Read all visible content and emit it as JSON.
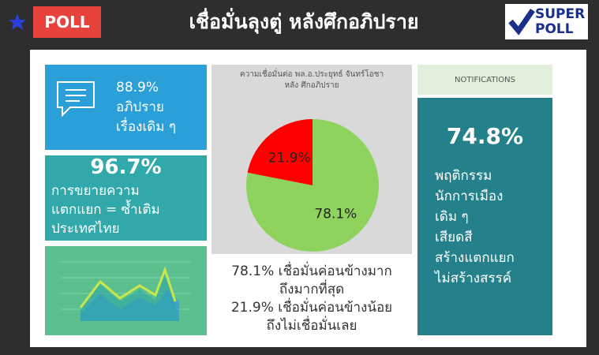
{
  "header": {
    "badge": "POLL",
    "title": "เชื่อมั่นลุงตู่ หลังศึกอภิปราย",
    "logo": [
      "SUPER",
      "POLL"
    ]
  },
  "cards": [
    {
      "value": "88.9%",
      "lines": [
        "อภิปราย",
        "เรื่องเดิม ๆ"
      ]
    },
    {
      "value": "96.7%",
      "lines": [
        "การขยายความ",
        "แตกแยก = ซ้ำเติม",
        "ประเทศไทย"
      ]
    }
  ],
  "chart_data": {
    "type": "pie",
    "title": [
      "ความเชื่อมั่นต่อ พล.อ.ประยุทธ์ จันทร์โอชา",
      "หลัง ศึกอภิปราย"
    ],
    "values": [
      78.1,
      21.9
    ],
    "value_labels": [
      "78.1%",
      "21.9%"
    ],
    "colors": [
      "#8fd35f",
      "#ff0000"
    ]
  },
  "captions": [
    "78.1% เชื่อมั่นค่อนข้างมาก",
    "ถึงมากที่สุด",
    "21.9% เชื่อมั่นค่อนข้างน้อย",
    "ถึงไม่เชื่อมั่นเลย"
  ],
  "notifications": {
    "heading": "NOTIFICATIONS",
    "value": "74.8%",
    "lines": [
      "พฤติกรรม",
      "นักการเมือง",
      "เดิม ๆ",
      "เสียดสี",
      "สร้างแตกแยก",
      "ไม่สร้างสรรค์"
    ]
  }
}
